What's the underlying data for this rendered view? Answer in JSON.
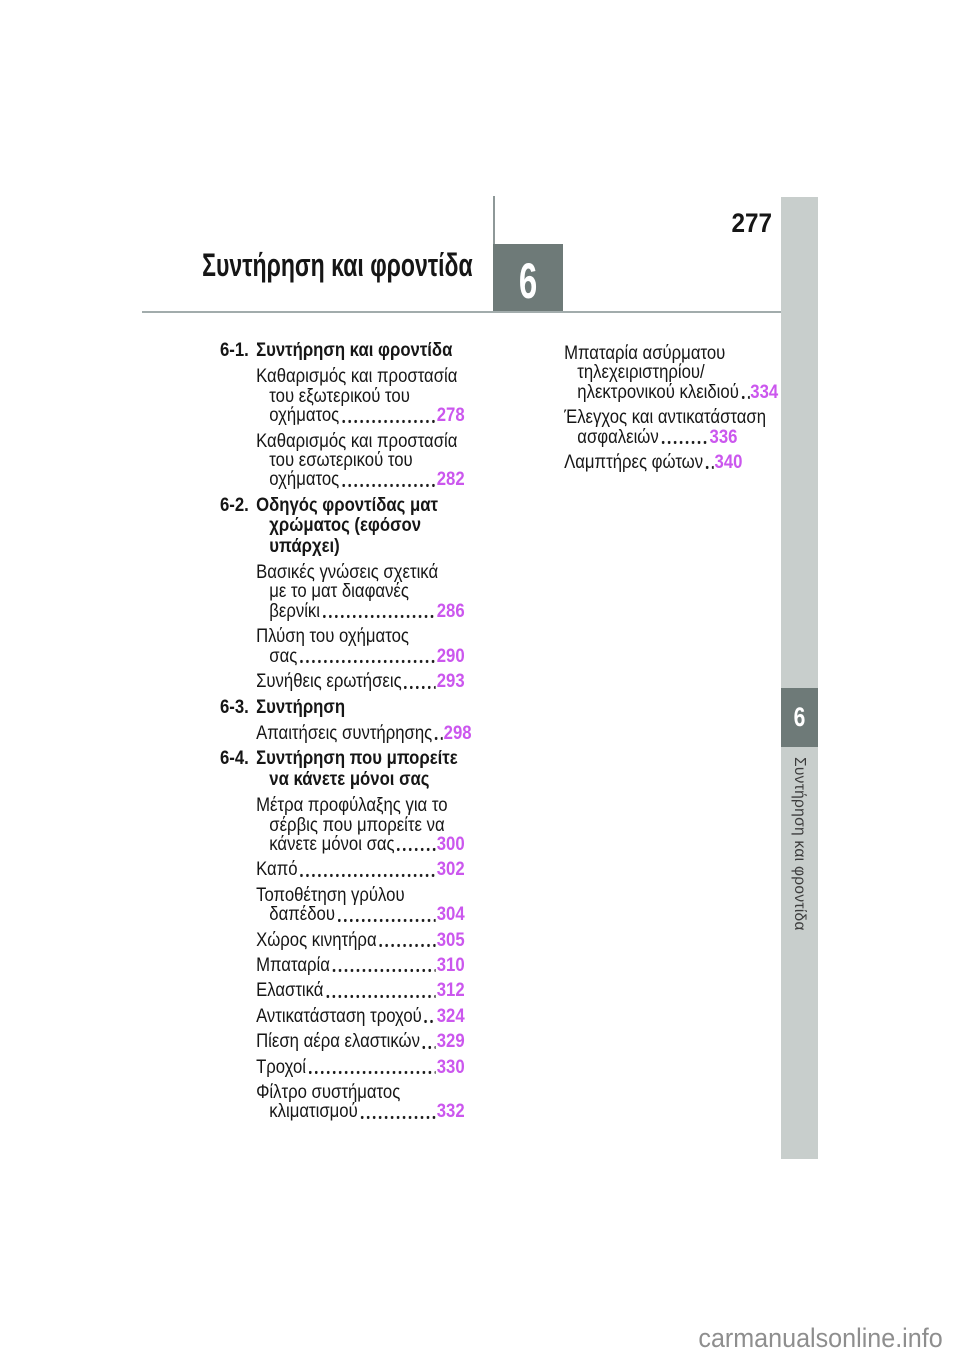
{
  "page": {
    "number": "277",
    "watermark": "carmanualsonline.info"
  },
  "header": {
    "title": "Συντήρηση και φροντίδα",
    "chapter": "6"
  },
  "sidebar": {
    "chapter": "6",
    "label": "Συντήρηση και φροντίδα"
  },
  "colors": {
    "page_ref_accent": "#cb57ee",
    "chapter_tab_dark": "#6e7a78",
    "side_strip_light": "#c8cecc",
    "header_rule": "#a2acac",
    "watermark_gray": "#8e8e8e"
  },
  "toc": {
    "left": [
      {
        "type": "section",
        "num": "6-1.",
        "lines": [
          "Συντήρηση και φροντίδα"
        ]
      },
      {
        "type": "entry",
        "lines": [
          "Καθαρισμός και προστασία",
          "του εξωτερικού του"
        ],
        "tail": "οχήματος ",
        "page": "278"
      },
      {
        "type": "entry",
        "lines": [
          "Καθαρισμός και προστασία",
          "του εσωτερικού του"
        ],
        "tail": "οχήματος ",
        "page": "282"
      },
      {
        "type": "section",
        "num": "6-2.",
        "lines": [
          "Οδηγός φροντίδας ματ",
          "χρώματος (εφόσον",
          "υπάρχει)"
        ]
      },
      {
        "type": "entry",
        "lines": [
          "Βασικές γνώσεις σχετικά",
          "με το ματ διαφανές"
        ],
        "tail": "βερνίκι",
        "page": "286"
      },
      {
        "type": "entry",
        "lines": [
          "Πλύση του οχήματος"
        ],
        "tail": "σας ",
        "page": "290"
      },
      {
        "type": "entry",
        "lines": [],
        "tail": "Συνήθεις ερωτήσεις ",
        "page": "293"
      },
      {
        "type": "section",
        "num": "6-3.",
        "lines": [
          "Συντήρηση"
        ]
      },
      {
        "type": "entry",
        "lines": [],
        "tail": "Απαιτήσεις συντήρησης",
        "page": "298"
      },
      {
        "type": "section",
        "num": "6-4.",
        "lines": [
          "Συντήρηση που μπορείτε",
          "να κάνετε μόνοι σας"
        ]
      },
      {
        "type": "entry",
        "lines": [
          "Μέτρα προφύλαξης για το",
          "σέρβις που μπορείτε να"
        ],
        "tail": "κάνετε μόνοι σας",
        "page": "300"
      },
      {
        "type": "entry",
        "lines": [],
        "tail": "Καπό",
        "page": "302"
      },
      {
        "type": "entry",
        "lines": [
          "Τοποθέτηση γρύλου"
        ],
        "tail": "δαπέδου ",
        "page": "304"
      },
      {
        "type": "entry",
        "lines": [],
        "tail": "Χώρος κινητήρα",
        "page": "305"
      },
      {
        "type": "entry",
        "lines": [],
        "tail": "Μπαταρία",
        "page": "310"
      },
      {
        "type": "entry",
        "lines": [],
        "tail": "Ελαστικά ",
        "page": "312"
      },
      {
        "type": "entry",
        "lines": [],
        "tail": "Αντικατάσταση τροχού ",
        "page": "324"
      },
      {
        "type": "entry",
        "lines": [],
        "tail": "Πίεση αέρα ελαστικών ",
        "page": "329"
      },
      {
        "type": "entry",
        "lines": [],
        "tail": "Τροχοί",
        "page": "330"
      },
      {
        "type": "entry",
        "lines": [
          "Φίλτρο συστήματος"
        ],
        "tail": "κλιματισμού ",
        "page": "332"
      }
    ],
    "right": [
      {
        "type": "entry",
        "lines": [
          "Μπαταρία ασύρματου",
          "τηλεχειριστηρίου/"
        ],
        "tail": "ηλεκτρονικού κλειδιού",
        "page": "334"
      },
      {
        "type": "entry",
        "lines": [
          "Έλεγχος και αντικατάσταση"
        ],
        "tail": "ασφαλειών ",
        "page": "336"
      },
      {
        "type": "entry",
        "lines": [],
        "tail": "Λαμπτήρες φώτων",
        "page": "340"
      }
    ]
  }
}
